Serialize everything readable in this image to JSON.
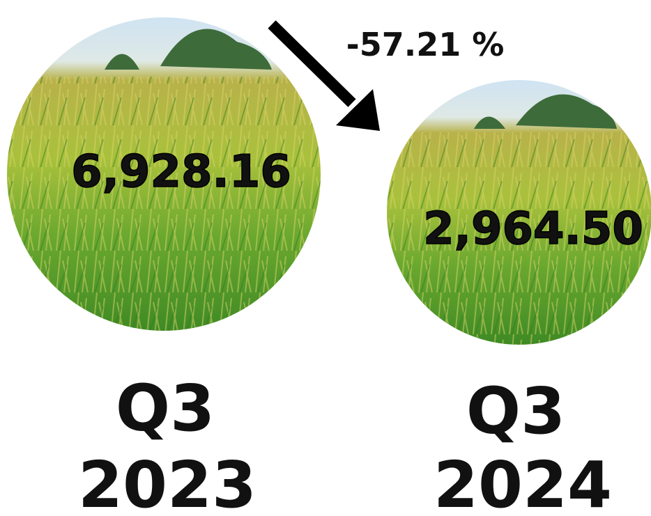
{
  "change": "-57.21 %",
  "items": [
    {
      "amount": "6,928.16",
      "quarter": "Q3",
      "year": "2023"
    },
    {
      "amount": "2,964.50",
      "quarter": "Q3",
      "year": "2024"
    }
  ]
}
